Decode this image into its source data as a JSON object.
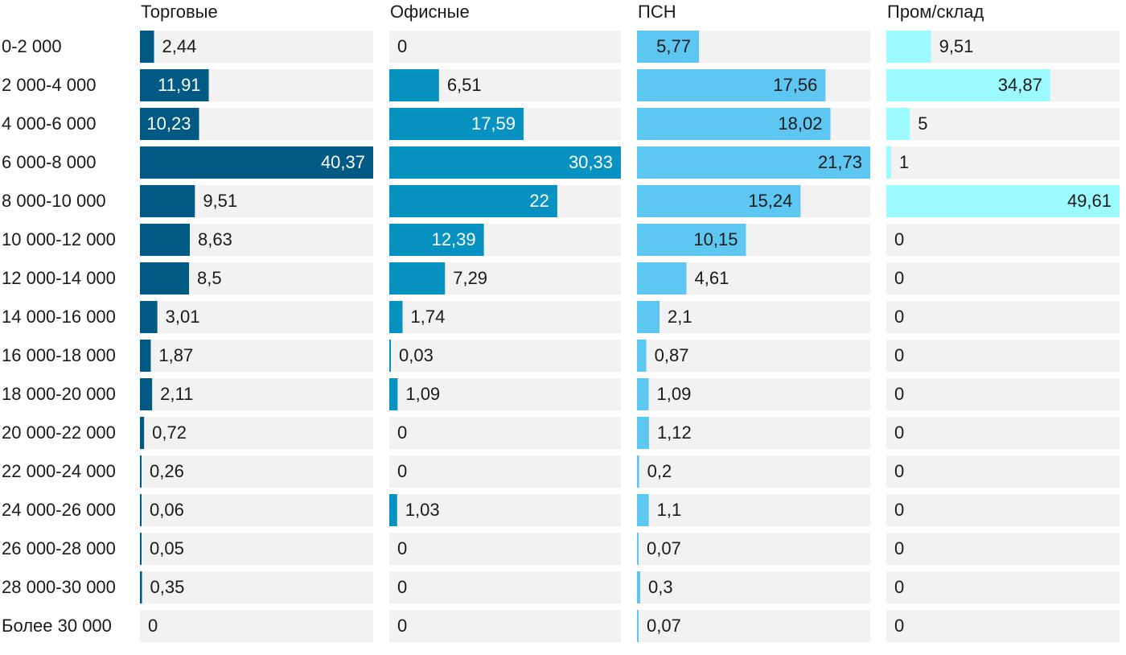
{
  "chart_data": {
    "type": "bar",
    "orientation": "horizontal",
    "layout": "small-multiples",
    "categories": [
      "0-2 000",
      "2 000-4 000",
      "4 000-6 000",
      "6 000-8 000",
      "8 000-10 000",
      "10 000-12 000",
      "12 000-14 000",
      "14 000-16 000",
      "16 000-18 000",
      "18 000-20 000",
      "20 000-22 000",
      "22 000-24 000",
      "24 000-26 000",
      "26 000-28 000",
      "28 000-30 000",
      "Более 30 000"
    ],
    "series": [
      {
        "name": "Торговые",
        "color": "#005a84",
        "values": [
          2.44,
          11.91,
          10.23,
          40.37,
          9.51,
          8.63,
          8.5,
          3.01,
          1.87,
          2.11,
          0.72,
          0.26,
          0.06,
          0.05,
          0.35,
          0
        ],
        "labels": [
          "2,44",
          "11,91",
          "10,23",
          "40,37",
          "9,51",
          "8,63",
          "8,5",
          "3,01",
          "1,87",
          "2,11",
          "0,72",
          "0,26",
          "0,06",
          "0,05",
          "0,35",
          "0"
        ]
      },
      {
        "name": "Офисные",
        "color": "#0892c2",
        "values": [
          0,
          6.51,
          17.59,
          30.33,
          22,
          12.39,
          7.29,
          1.74,
          0.03,
          1.09,
          0,
          0,
          1.03,
          0,
          0,
          0
        ],
        "labels": [
          "0",
          "6,51",
          "17,59",
          "30,33",
          "22",
          "12,39",
          "7,29",
          "1,74",
          "0,03",
          "1,09",
          "0",
          "0",
          "1,03",
          "0",
          "0",
          "0"
        ]
      },
      {
        "name": "ПСН",
        "color": "#5ec7f1",
        "values": [
          5.77,
          17.56,
          18.02,
          21.73,
          15.24,
          10.15,
          4.61,
          2.1,
          0.87,
          1.09,
          1.12,
          0.2,
          1.1,
          0.07,
          0.3,
          0.07
        ],
        "labels": [
          "5,77",
          "17,56",
          "18,02",
          "21,73",
          "15,24",
          "10,15",
          "4,61",
          "2,1",
          "0,87",
          "1,09",
          "1,12",
          "0,2",
          "1,1",
          "0,07",
          "0,3",
          "0,07"
        ]
      },
      {
        "name": "Пром/склад",
        "color": "#9cfbff",
        "values": [
          9.51,
          34.87,
          5,
          1,
          49.61,
          0,
          0,
          0,
          0,
          0,
          0,
          0,
          0,
          0,
          0,
          0
        ],
        "labels": [
          "9,51",
          "34,87",
          "5",
          "1",
          "49,61",
          "0",
          "0",
          "0",
          "0",
          "0",
          "0",
          "0",
          "0",
          "0",
          "0",
          "0"
        ]
      }
    ],
    "background_color": "#f2f2f2",
    "text_color": "#1a1a1a"
  }
}
